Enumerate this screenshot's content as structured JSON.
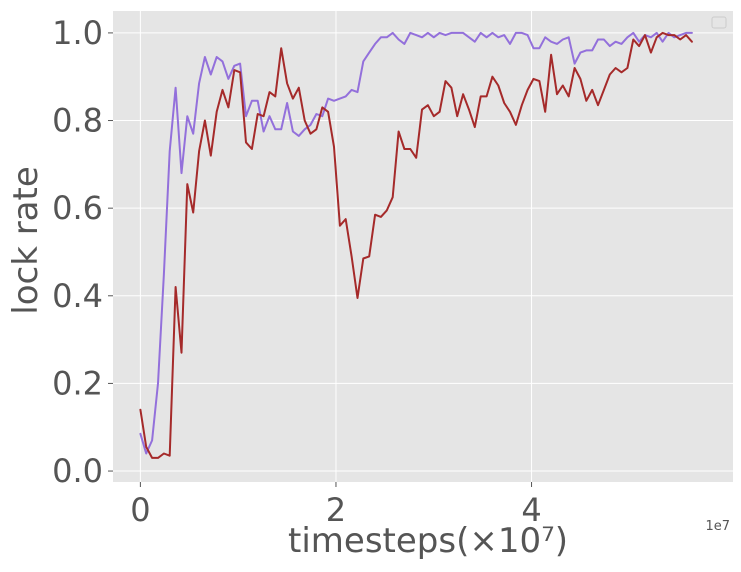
{
  "chart_data": {
    "type": "line",
    "xlabel": "timesteps(×10⁷)",
    "ylabel": "lock rate",
    "x_offset_label": "1e7",
    "xlim": [
      -2800000,
      60600000
    ],
    "ylim": [
      -0.025,
      1.05
    ],
    "x_ticks": [
      0,
      20000000,
      40000000
    ],
    "x_tick_labels": [
      "0",
      "2",
      "4"
    ],
    "y_ticks": [
      0.0,
      0.2,
      0.4,
      0.6,
      0.8,
      1.0
    ],
    "y_tick_labels": [
      "0.0",
      "0.2",
      "0.4",
      "0.6",
      "0.8",
      "1.0"
    ],
    "grid": true,
    "legend": {
      "placement": "top-right",
      "entries": []
    },
    "background": "#e5e5e5",
    "series": [
      {
        "color": "#9370db",
        "x": [
          0,
          600000,
          1200000,
          1800000,
          2400000,
          3000000,
          3600000,
          4200000,
          4800000,
          5400000,
          6000000,
          6600000,
          7200000,
          7800000,
          8400000,
          9000000,
          9600000,
          10200000,
          10800000,
          11400000,
          12000000,
          12600000,
          13200000,
          13800000,
          14400000,
          15000000,
          15600000,
          16200000,
          16800000,
          17400000,
          18000000,
          18600000,
          19200000,
          19800000,
          20400000,
          21000000,
          21600000,
          22200000,
          22800000,
          23400000,
          24000000,
          24600000,
          25200000,
          25800000,
          26400000,
          27000000,
          27600000,
          28200000,
          28800000,
          29400000,
          30000000,
          30600000,
          31200000,
          31800000,
          32400000,
          33000000,
          33600000,
          34200000,
          34800000,
          35400000,
          36000000,
          36600000,
          37200000,
          37800000,
          38400000,
          39000000,
          39600000,
          40200000,
          40800000,
          41400000,
          42000000,
          42600000,
          43200000,
          43800000,
          44400000,
          45000000,
          45600000,
          46200000,
          46800000,
          47400000,
          48000000,
          48600000,
          49200000,
          49800000,
          50400000,
          51000000,
          51600000,
          52200000,
          52800000,
          53400000,
          54000000,
          54600000,
          55200000,
          55800000,
          56400000
        ],
        "y": [
          0.085,
          0.04,
          0.07,
          0.2,
          0.45,
          0.73,
          0.875,
          0.68,
          0.81,
          0.77,
          0.885,
          0.945,
          0.905,
          0.945,
          0.935,
          0.895,
          0.925,
          0.93,
          0.81,
          0.845,
          0.845,
          0.775,
          0.81,
          0.78,
          0.78,
          0.84,
          0.775,
          0.765,
          0.78,
          0.79,
          0.815,
          0.81,
          0.85,
          0.845,
          0.85,
          0.855,
          0.87,
          0.865,
          0.935,
          0.955,
          0.975,
          0.99,
          0.99,
          1.0,
          0.985,
          0.975,
          1.0,
          0.995,
          0.99,
          1.0,
          0.99,
          1.0,
          0.995,
          1.0,
          1.0,
          1.0,
          0.99,
          0.98,
          1.0,
          0.99,
          1.0,
          0.99,
          0.995,
          0.975,
          1.0,
          1.0,
          0.995,
          0.965,
          0.965,
          0.99,
          0.98,
          0.975,
          0.985,
          0.99,
          0.93,
          0.955,
          0.96,
          0.96,
          0.985,
          0.985,
          0.97,
          0.98,
          0.975,
          0.99,
          1.0,
          0.98,
          0.995,
          0.99,
          1.0,
          0.98,
          1.0,
          0.99,
          0.995,
          1.0,
          1.0
        ]
      },
      {
        "color": "#a52a2a",
        "x": [
          0,
          600000,
          1200000,
          1800000,
          2400000,
          3000000,
          3600000,
          4200000,
          4800000,
          5400000,
          6000000,
          6600000,
          7200000,
          7800000,
          8400000,
          9000000,
          9600000,
          10200000,
          10800000,
          11400000,
          12000000,
          12600000,
          13200000,
          13800000,
          14400000,
          15000000,
          15600000,
          16200000,
          16800000,
          17400000,
          18000000,
          18600000,
          19200000,
          19800000,
          20400000,
          21000000,
          21600000,
          22200000,
          22800000,
          23400000,
          24000000,
          24600000,
          25200000,
          25800000,
          26400000,
          27000000,
          27600000,
          28200000,
          28800000,
          29400000,
          30000000,
          30600000,
          31200000,
          31800000,
          32400000,
          33000000,
          33600000,
          34200000,
          34800000,
          35400000,
          36000000,
          36600000,
          37200000,
          37800000,
          38400000,
          39000000,
          39600000,
          40200000,
          40800000,
          41400000,
          42000000,
          42600000,
          43200000,
          43800000,
          44400000,
          45000000,
          45600000,
          46200000,
          46800000,
          47400000,
          48000000,
          48600000,
          49200000,
          49800000,
          50400000,
          51000000,
          51600000,
          52200000,
          52800000,
          53400000,
          54000000,
          54600000,
          55200000,
          55800000,
          56400000
        ],
        "y": [
          0.14,
          0.055,
          0.03,
          0.03,
          0.04,
          0.035,
          0.42,
          0.27,
          0.655,
          0.59,
          0.73,
          0.8,
          0.72,
          0.82,
          0.87,
          0.83,
          0.915,
          0.91,
          0.75,
          0.735,
          0.815,
          0.81,
          0.865,
          0.855,
          0.965,
          0.885,
          0.85,
          0.875,
          0.8,
          0.77,
          0.78,
          0.83,
          0.82,
          0.74,
          0.56,
          0.575,
          0.49,
          0.395,
          0.485,
          0.49,
          0.585,
          0.58,
          0.595,
          0.625,
          0.775,
          0.735,
          0.735,
          0.715,
          0.825,
          0.835,
          0.81,
          0.82,
          0.89,
          0.875,
          0.81,
          0.86,
          0.825,
          0.785,
          0.855,
          0.855,
          0.9,
          0.88,
          0.84,
          0.82,
          0.79,
          0.835,
          0.87,
          0.895,
          0.89,
          0.82,
          0.95,
          0.86,
          0.88,
          0.855,
          0.92,
          0.895,
          0.845,
          0.87,
          0.835,
          0.87,
          0.905,
          0.92,
          0.91,
          0.92,
          0.985,
          0.97,
          0.995,
          0.955,
          0.99,
          1.0,
          0.995,
          0.995,
          0.985,
          0.995,
          0.98
        ]
      }
    ]
  }
}
